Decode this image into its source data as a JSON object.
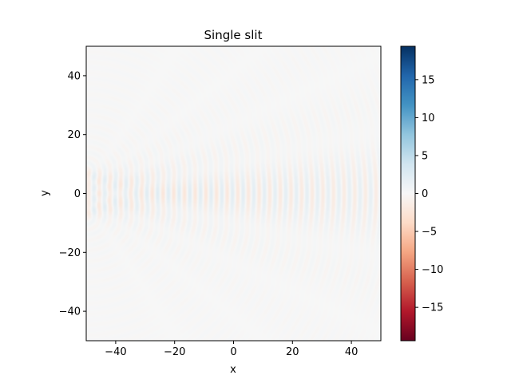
{
  "chart_data": {
    "type": "heatmap",
    "title": "Single slit",
    "xlabel": "x",
    "ylabel": "y",
    "xlim": [
      -50,
      50
    ],
    "ylim": [
      -50,
      50
    ],
    "x_ticks": [
      -40,
      -20,
      0,
      20,
      40
    ],
    "y_ticks": [
      -40,
      -20,
      0,
      20,
      40
    ],
    "x_tick_labels": [
      "−40",
      "−20",
      "0",
      "20",
      "40"
    ],
    "y_tick_labels": [
      "−40",
      "−20",
      "0",
      "20",
      "40"
    ],
    "colormap": "RdBu",
    "colorbar": {
      "range": [
        -19.4,
        19.4
      ],
      "ticks": [
        15,
        10,
        5,
        0,
        -5,
        -10,
        -15
      ],
      "tick_labels": [
        "15",
        "10",
        "5",
        "0",
        "−5",
        "−10",
        "−15"
      ]
    },
    "colors": {
      "high": "#053061",
      "zero": "#f7f7f7",
      "low": "#67001f"
    },
    "description_values": {
      "source_x": -50,
      "slit_half_width": 8,
      "wavelength": 3.6,
      "peak_amplitude": 19.4
    }
  }
}
